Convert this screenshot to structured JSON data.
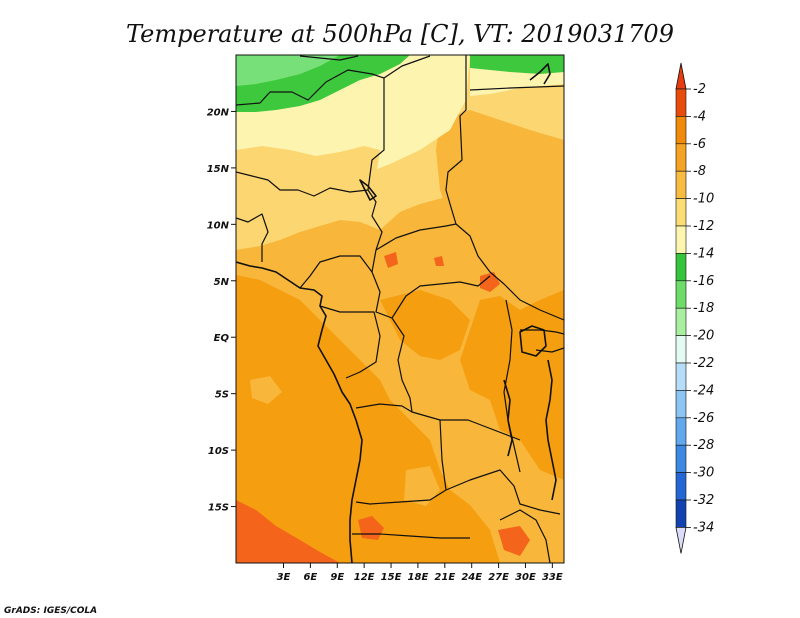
{
  "title": "Temperature at 500hPa [C], VT: 2019031709",
  "credit": "GrADS: IGES/COLA",
  "map": {
    "type": "filled-contour",
    "variable": "Temperature at 500hPa",
    "units": "C",
    "lon_range": [
      -2.3,
      34.3
    ],
    "lat_range": [
      -20,
      25
    ],
    "lon_ticks": [
      {
        "value": 3,
        "label": "3E"
      },
      {
        "value": 6,
        "label": "6E"
      },
      {
        "value": 9,
        "label": "9E"
      },
      {
        "value": 12,
        "label": "12E"
      },
      {
        "value": 15,
        "label": "15E"
      },
      {
        "value": 18,
        "label": "18E"
      },
      {
        "value": 21,
        "label": "21E"
      },
      {
        "value": 24,
        "label": "24E"
      },
      {
        "value": 27,
        "label": "27E"
      },
      {
        "value": 30,
        "label": "30E"
      },
      {
        "value": 33,
        "label": "33E"
      }
    ],
    "lat_ticks": [
      {
        "value": 20,
        "label": "20N"
      },
      {
        "value": 15,
        "label": "15N"
      },
      {
        "value": 10,
        "label": "10N"
      },
      {
        "value": 5,
        "label": "5N"
      },
      {
        "value": 0,
        "label": "EQ"
      },
      {
        "value": -5,
        "label": "5S"
      },
      {
        "value": -10,
        "label": "10S"
      },
      {
        "value": -15,
        "label": "15S"
      }
    ]
  },
  "colorbar": {
    "labels": [
      "-2",
      "-4",
      "-6",
      "-8",
      "-10",
      "-12",
      "-14",
      "-16",
      "-18",
      "-20",
      "-22",
      "-24",
      "-26",
      "-28",
      "-30",
      "-32",
      "-34"
    ],
    "colors": [
      "#e84c0c",
      "#f08a0a",
      "#f5a324",
      "#f8bc40",
      "#fcdc74",
      "#fdf6b0",
      "#36c43c",
      "#6fdc6a",
      "#a8f0a0",
      "#e4fbf4",
      "#b6dcf8",
      "#8cc4f4",
      "#62a8ec",
      "#3c88e2",
      "#2466d4",
      "#1242b0",
      "#0a1c78"
    ],
    "top_cap_color": "#e83c10",
    "bottom_cap_color": "#dcdcf8"
  },
  "field_colors": {
    "warm_dark": "#f4641a",
    "warm": "#f59e10",
    "mid": "#f8b63a",
    "light": "#fcd670",
    "pale": "#fdf4b0",
    "green": "#3ec83e",
    "green_light": "#78e078"
  }
}
